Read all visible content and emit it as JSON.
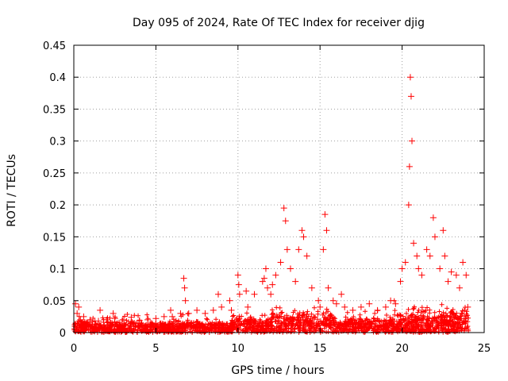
{
  "chart_data": {
    "type": "scatter",
    "title": "Day 095 of 2024, Rate Of TEC Index for receiver djig",
    "xlabel": "GPS time / hours",
    "ylabel": "ROTI / TECUs",
    "xlim": [
      0,
      25
    ],
    "ylim": [
      0,
      0.45
    ],
    "xticks": [
      "0",
      "5",
      "10",
      "15",
      "20",
      "25"
    ],
    "yticks": [
      "0",
      "0.05",
      "0.1",
      "0.15",
      "0.2",
      "0.25",
      "0.3",
      "0.35",
      "0.4",
      "0.45"
    ],
    "grid": true,
    "marker": "+",
    "color": "#ff0000",
    "series": [
      {
        "name": "ROTI",
        "x": [
          0.1,
          0.2,
          0.3,
          0.4,
          0.6,
          1.0,
          1.5,
          1.6,
          2.0,
          2.4,
          2.5,
          3.0,
          3.5,
          4.0,
          4.5,
          5.0,
          5.5,
          5.9,
          6.0,
          6.5,
          6.7,
          6.75,
          6.8,
          7.0,
          7.5,
          8.0,
          8.5,
          8.8,
          9.0,
          9.5,
          9.6,
          10.0,
          10.05,
          10.1,
          10.5,
          10.6,
          11.0,
          11.5,
          11.6,
          11.7,
          11.8,
          12.0,
          12.1,
          12.3,
          12.6,
          12.8,
          12.9,
          13.0,
          13.2,
          13.5,
          13.7,
          13.9,
          14.0,
          14.2,
          14.5,
          14.9,
          15.0,
          15.2,
          15.3,
          15.4,
          15.5,
          15.8,
          16.0,
          16.3,
          16.5,
          17.0,
          17.5,
          18.0,
          18.5,
          19.0,
          19.3,
          19.6,
          19.9,
          20.0,
          20.2,
          20.4,
          20.45,
          20.5,
          20.55,
          20.6,
          20.7,
          20.9,
          21.0,
          21.2,
          21.5,
          21.7,
          21.9,
          22.0,
          22.3,
          22.5,
          22.6,
          22.8,
          23.0,
          23.3,
          23.5,
          23.7,
          23.9,
          24.0
        ],
        "y": [
          0.045,
          0.03,
          0.04,
          0.02,
          0.025,
          0.02,
          0.018,
          0.035,
          0.02,
          0.03,
          0.022,
          0.02,
          0.024,
          0.019,
          0.02,
          0.022,
          0.025,
          0.035,
          0.025,
          0.03,
          0.085,
          0.07,
          0.05,
          0.03,
          0.035,
          0.03,
          0.035,
          0.06,
          0.04,
          0.05,
          0.035,
          0.09,
          0.075,
          0.06,
          0.065,
          0.04,
          0.06,
          0.08,
          0.085,
          0.1,
          0.07,
          0.06,
          0.075,
          0.09,
          0.11,
          0.195,
          0.175,
          0.13,
          0.1,
          0.08,
          0.13,
          0.16,
          0.15,
          0.12,
          0.07,
          0.05,
          0.04,
          0.13,
          0.185,
          0.16,
          0.07,
          0.05,
          0.045,
          0.06,
          0.04,
          0.035,
          0.04,
          0.045,
          0.035,
          0.04,
          0.05,
          0.045,
          0.08,
          0.1,
          0.11,
          0.2,
          0.26,
          0.4,
          0.37,
          0.3,
          0.14,
          0.12,
          0.1,
          0.09,
          0.13,
          0.12,
          0.18,
          0.15,
          0.1,
          0.16,
          0.12,
          0.08,
          0.095,
          0.09,
          0.07,
          0.11,
          0.09,
          0.04
        ]
      }
    ]
  }
}
